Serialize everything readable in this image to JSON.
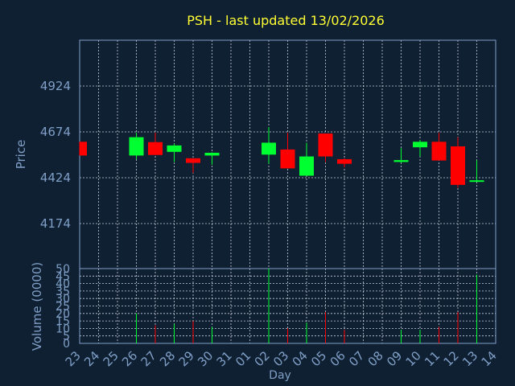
{
  "chart_data": {
    "type": "candlestick",
    "title": "PSH - last updated 13/02/2026",
    "xlabel": "Day",
    "price_panel": {
      "ylabel": "Price",
      "yticks": [
        4174,
        4424,
        4674,
        4924
      ]
    },
    "volume_panel": {
      "ylabel": "Volume (0000)",
      "yticks": [
        0,
        5,
        10,
        15,
        20,
        25,
        30,
        35,
        40,
        45,
        50
      ],
      "ylim": [
        0,
        50
      ]
    },
    "x_tick_labels": [
      "23",
      "24",
      "25",
      "26",
      "27",
      "28",
      "29",
      "30",
      "31",
      "01",
      "02",
      "03",
      "04",
      "05",
      "06",
      "07",
      "08",
      "09",
      "10",
      "11",
      "12",
      "13",
      "14"
    ],
    "candles": [
      {
        "day": "23",
        "open": 4620,
        "close": 4545,
        "high": 4620,
        "low": 4545,
        "volume": 0,
        "dir": "down"
      },
      {
        "day": "26",
        "open": 4545,
        "close": 4645,
        "high": 4670,
        "low": 4525,
        "volume": 20,
        "dir": "up"
      },
      {
        "day": "27",
        "open": 4618,
        "close": 4548,
        "high": 4670,
        "low": 4548,
        "volume": 12,
        "dir": "down"
      },
      {
        "day": "28",
        "open": 4565,
        "close": 4600,
        "high": 4610,
        "low": 4510,
        "volume": 13,
        "dir": "up"
      },
      {
        "day": "29",
        "open": 4530,
        "close": 4505,
        "high": 4530,
        "low": 4450,
        "volume": 15,
        "dir": "down"
      },
      {
        "day": "30",
        "open": 4545,
        "close": 4560,
        "high": 4562,
        "low": 4495,
        "volume": 11,
        "dir": "up"
      },
      {
        "day": "02",
        "open": 4550,
        "close": 4615,
        "high": 4700,
        "low": 4500,
        "volume": 50,
        "dir": "up"
      },
      {
        "day": "03",
        "open": 4578,
        "close": 4475,
        "high": 4670,
        "low": 4475,
        "volume": 10,
        "dir": "down"
      },
      {
        "day": "04",
        "open": 4435,
        "close": 4540,
        "high": 4615,
        "low": 4435,
        "volume": 14,
        "dir": "up"
      },
      {
        "day": "05",
        "open": 4665,
        "close": 4540,
        "high": 4665,
        "low": 4510,
        "volume": 21,
        "dir": "down"
      },
      {
        "day": "06",
        "open": 4525,
        "close": 4500,
        "high": 4530,
        "low": 4480,
        "volume": 9,
        "dir": "down"
      },
      {
        "day": "09",
        "open": 4510,
        "close": 4520,
        "high": 4585,
        "low": 4505,
        "volume": 9,
        "dir": "up"
      },
      {
        "day": "10",
        "open": 4590,
        "close": 4620,
        "high": 4630,
        "low": 4540,
        "volume": 9,
        "dir": "up"
      },
      {
        "day": "11",
        "open": 4620,
        "close": 4518,
        "high": 4670,
        "low": 4518,
        "volume": 11,
        "dir": "down"
      },
      {
        "day": "12",
        "open": 4595,
        "close": 4385,
        "high": 4645,
        "low": 4370,
        "volume": 21,
        "dir": "down"
      },
      {
        "day": "13",
        "open": 4405,
        "close": 4410,
        "high": 4520,
        "low": 4405,
        "volume": 46,
        "dir": "up"
      }
    ],
    "colors": {
      "up": "#00ff30",
      "down": "#ff0000",
      "background": "#102033",
      "text": "#7f9fc7",
      "title": "#ffff33",
      "grid": "#c8d0dc"
    },
    "grid": true
  }
}
